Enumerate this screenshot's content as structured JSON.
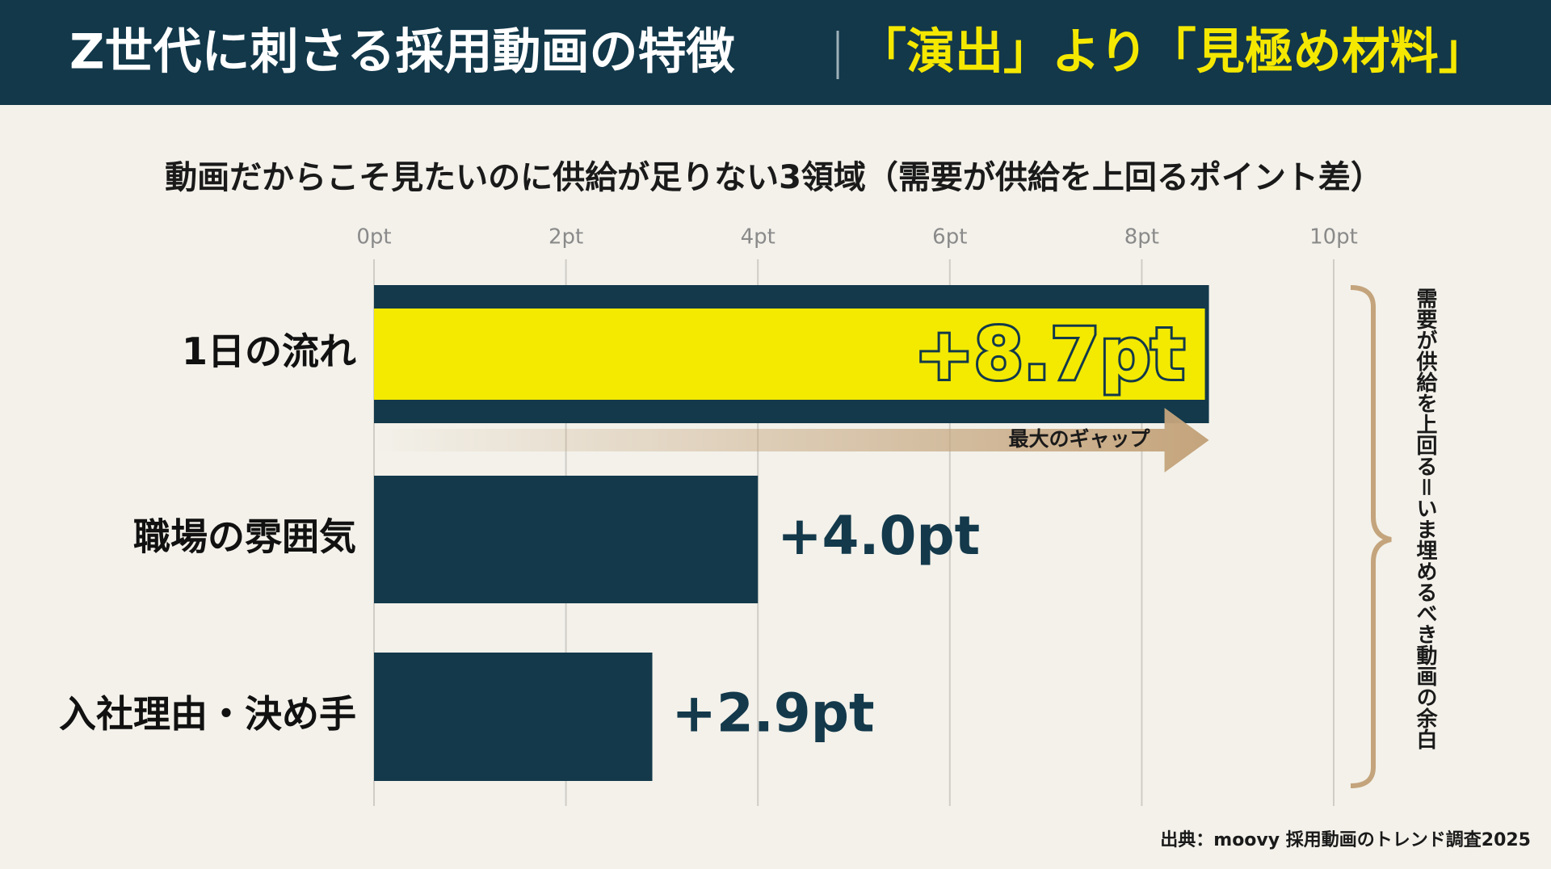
{
  "header": {
    "title": "Z世代に刺さる採用動画の特徴",
    "highlight": "「演出」より「見極め材料」"
  },
  "chart_data": {
    "type": "bar",
    "orientation": "horizontal",
    "title": "動画だからこそ見たいのに供給が足りない3領域（需要が供給を上回るポイント差）",
    "categories": [
      "1日の流れ",
      "職場の雰囲気",
      "入社理由・決め手"
    ],
    "values": [
      8.7,
      4.0,
      2.9
    ],
    "value_labels": [
      "+8.7pt",
      "+4.0pt",
      "+2.9pt"
    ],
    "color": "#13394b",
    "highlight_color": "#f3ea00",
    "xlim": [
      0,
      10
    ],
    "xticks": [
      {
        "value": 0,
        "label": "0pt"
      },
      {
        "value": 2,
        "label": "2pt"
      },
      {
        "value": 4,
        "label": "4pt"
      },
      {
        "value": 6,
        "label": "6pt"
      },
      {
        "value": 8,
        "label": "8pt"
      },
      {
        "value": 10,
        "label": "10pt"
      }
    ],
    "grid": true,
    "annotations": {
      "arrow": "最大のギャップ",
      "bracket": "需要が供給を上回る＝いま埋めるべき動画の余白"
    },
    "source": "出典：moovy 採用動画のトレンド調査2025"
  }
}
